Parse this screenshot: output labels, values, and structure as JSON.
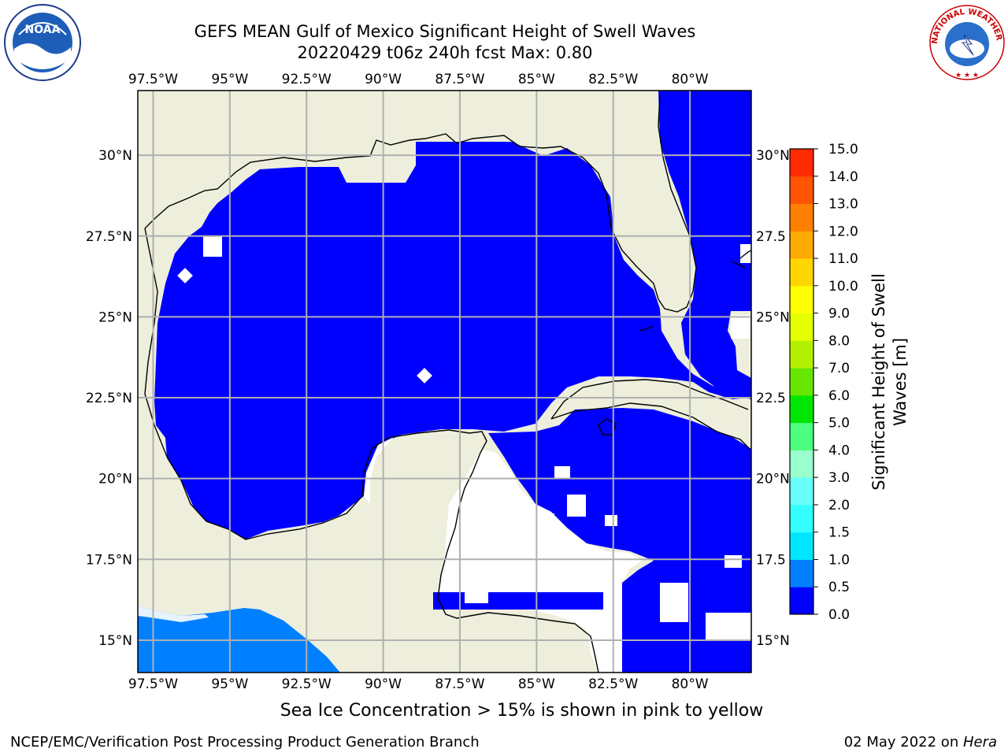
{
  "title": {
    "line1": "GEFS MEAN Gulf of Mexico Significant Height of Swell Waves",
    "line2": "20220429 t06z 240h fcst   Max: 0.80"
  },
  "map": {
    "projection": "PlateCarree",
    "lon_range": [
      -98,
      -78
    ],
    "lat_range": [
      14,
      32
    ],
    "lon_ticks": [
      {
        "value": -97.5,
        "label": "97.5°W"
      },
      {
        "value": -95,
        "label": "95°W"
      },
      {
        "value": -92.5,
        "label": "92.5°W"
      },
      {
        "value": -90,
        "label": "90°W"
      },
      {
        "value": -87.5,
        "label": "87.5°W"
      },
      {
        "value": -85,
        "label": "85°W"
      },
      {
        "value": -82.5,
        "label": "82.5°W"
      },
      {
        "value": -80,
        "label": "80°W"
      }
    ],
    "lat_ticks": [
      {
        "value": 15,
        "label": "15°N"
      },
      {
        "value": 17.5,
        "label": "17.5°N"
      },
      {
        "value": 20,
        "label": "20°N"
      },
      {
        "value": 22.5,
        "label": "22.5°N"
      },
      {
        "value": 25,
        "label": "25°N"
      },
      {
        "value": 27.5,
        "label": "27.5°N"
      },
      {
        "value": 30,
        "label": "30°N"
      }
    ],
    "right_lat_labels": [
      "15°N",
      "17.5",
      "20°N",
      "22.5",
      "25°N",
      "27.5",
      "30°N"
    ],
    "land_color": "#eeeedc",
    "grid_color": "#b0b0b0",
    "field_color_low": "#0000ff",
    "field_color_mid": "#0080ff",
    "nodata_color": "#ffffff"
  },
  "colorbar": {
    "label_line1": "Significant Height of Swell",
    "label_line2": "Waves [m]",
    "levels": [
      {
        "label": "0.0",
        "color": "#0000ff"
      },
      {
        "label": "0.5",
        "color": "#0080ff"
      },
      {
        "label": "1.0",
        "color": "#00e6ff"
      },
      {
        "label": "1.5",
        "color": "#33ffff"
      },
      {
        "label": "2.0",
        "color": "#66fffa"
      },
      {
        "label": "3.0",
        "color": "#99ffcc"
      },
      {
        "label": "4.0",
        "color": "#4dff80"
      },
      {
        "label": "5.0",
        "color": "#00e600"
      },
      {
        "label": "6.0",
        "color": "#66e600"
      },
      {
        "label": "7.0",
        "color": "#b3f000"
      },
      {
        "label": "8.0",
        "color": "#e6ff00"
      },
      {
        "label": "9.0",
        "color": "#ffff00"
      },
      {
        "label": "10.0",
        "color": "#ffd700"
      },
      {
        "label": "11.0",
        "color": "#ffaa00"
      },
      {
        "label": "12.0",
        "color": "#ff8000"
      },
      {
        "label": "13.0",
        "color": "#ff5500"
      },
      {
        "label": "14.0",
        "color": "#ff2a00"
      },
      {
        "label": "15.0",
        "color": "#ff0000"
      }
    ]
  },
  "ice_note": "Sea Ice Concentration > 15% is shown in pink to yellow",
  "footer": {
    "left": "NCEP/EMC/Verification Post Processing Product Generation Branch",
    "right_date": "02 May 2022 on ",
    "right_host": "Hera"
  },
  "logos": {
    "noaa_text": "NOAA",
    "nws_text": "NATIONAL WEATHER SERVICE"
  }
}
